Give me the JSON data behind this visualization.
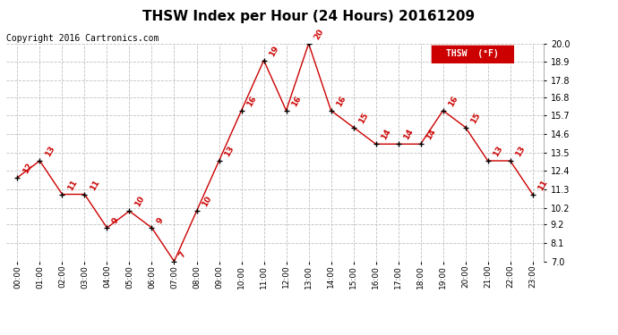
{
  "title": "THSW Index per Hour (24 Hours) 20161209",
  "copyright": "Copyright 2016 Cartronics.com",
  "legend_label": "THSW  (°F)",
  "hours": [
    0,
    1,
    2,
    3,
    4,
    5,
    6,
    7,
    8,
    9,
    10,
    11,
    12,
    13,
    14,
    15,
    16,
    17,
    18,
    19,
    20,
    21,
    22,
    23
  ],
  "hour_labels": [
    "00:00",
    "01:00",
    "02:00",
    "03:00",
    "04:00",
    "05:00",
    "06:00",
    "07:00",
    "08:00",
    "09:00",
    "10:00",
    "11:00",
    "12:00",
    "13:00",
    "14:00",
    "15:00",
    "16:00",
    "17:00",
    "18:00",
    "19:00",
    "20:00",
    "21:00",
    "22:00",
    "23:00"
  ],
  "values": [
    12,
    13,
    11,
    11,
    9,
    10,
    9,
    7,
    10,
    13,
    16,
    19,
    16,
    20,
    16,
    15,
    14,
    14,
    14,
    16,
    15,
    13,
    13,
    11
  ],
  "ylim": [
    7.0,
    20.0
  ],
  "yticks": [
    7.0,
    8.1,
    9.2,
    10.2,
    11.3,
    12.4,
    13.5,
    14.6,
    15.7,
    16.8,
    17.8,
    18.9,
    20.0
  ],
  "line_color": "#cc0000",
  "marker_color": "black",
  "label_color": "#cc0000",
  "bg_color": "#ffffff",
  "grid_color": "#c0c0c0",
  "title_fontsize": 11,
  "copyright_fontsize": 7,
  "legend_bg": "#cc0000",
  "legend_text_color": "#ffffff"
}
